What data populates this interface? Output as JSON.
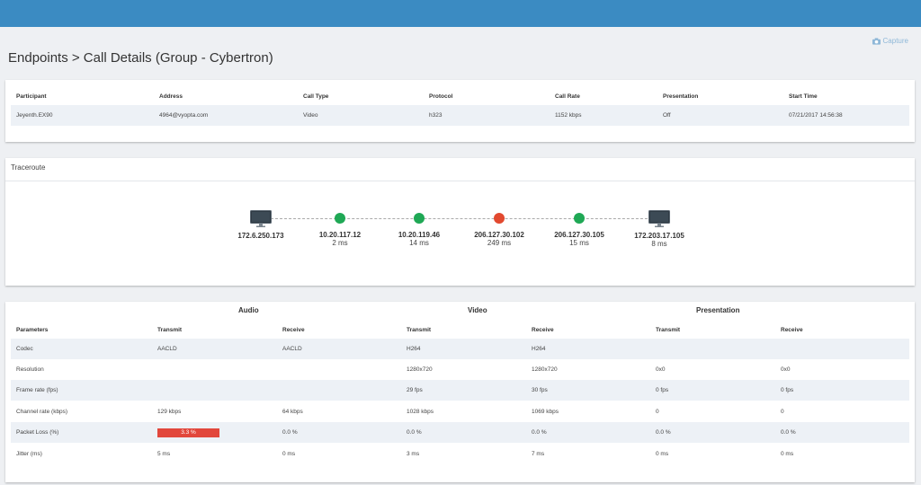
{
  "capture_label": "Capture",
  "page_title": "Endpoints > Call Details (Group - Cybertron)",
  "call": {
    "headers": [
      "Participant",
      "Address",
      "Call Type",
      "Protocol",
      "Call Rate",
      "Presentation",
      "Start Time"
    ],
    "row": [
      "Jeyenth.EX90",
      "4964@vyopta.com",
      "Video",
      "h323",
      "1152 kbps",
      "Off",
      "07/21/2017 14:56:38"
    ]
  },
  "traceroute": {
    "title": "Traceroute",
    "hops": [
      {
        "ip": "172.6.250.173",
        "ms": "",
        "kind": "endpoint"
      },
      {
        "ip": "10.20.117.12",
        "ms": "2 ms",
        "kind": "green"
      },
      {
        "ip": "10.20.119.46",
        "ms": "14 ms",
        "kind": "green"
      },
      {
        "ip": "206.127.30.102",
        "ms": "249 ms",
        "kind": "red"
      },
      {
        "ip": "206.127.30.105",
        "ms": "15 ms",
        "kind": "green"
      },
      {
        "ip": "172.203.17.105",
        "ms": "8 ms",
        "kind": "endpoint"
      }
    ]
  },
  "stats": {
    "groups": [
      "Audio",
      "Video",
      "Presentation"
    ],
    "headers": [
      "Parameters",
      "Transmit",
      "Receive",
      "Transmit",
      "Receive",
      "Transmit",
      "Receive"
    ],
    "rows": [
      [
        "Codec",
        "AACLD",
        "AACLD",
        "H264",
        "H264",
        "",
        ""
      ],
      [
        "Resolution",
        "",
        "",
        "1280x720",
        "1280x720",
        "0x0",
        "0x0"
      ],
      [
        "Frame rate (fps)",
        "",
        "",
        "29 fps",
        "30 fps",
        "0 fps",
        "0 fps"
      ],
      [
        "Channel rate (kbps)",
        "129 kbps",
        "64 kbps",
        "1028 kbps",
        "1069 kbps",
        "0",
        "0"
      ],
      [
        "Packet Loss (%)",
        "3.3 %",
        "0.0 %",
        "0.0 %",
        "0.0 %",
        "0.0 %",
        "0.0 %"
      ],
      [
        "Jitter (ms)",
        "5 ms",
        "0 ms",
        "3 ms",
        "7 ms",
        "0 ms",
        "0 ms"
      ]
    ]
  },
  "colors": {
    "topbar": "#3b8bc2",
    "hop_ok": "#1fa855",
    "hop_bad": "#e2492f",
    "loss_bar": "#e2473c",
    "row_shade": "#edf1f6"
  },
  "icons": [
    "camera-icon",
    "monitor-icon"
  ]
}
